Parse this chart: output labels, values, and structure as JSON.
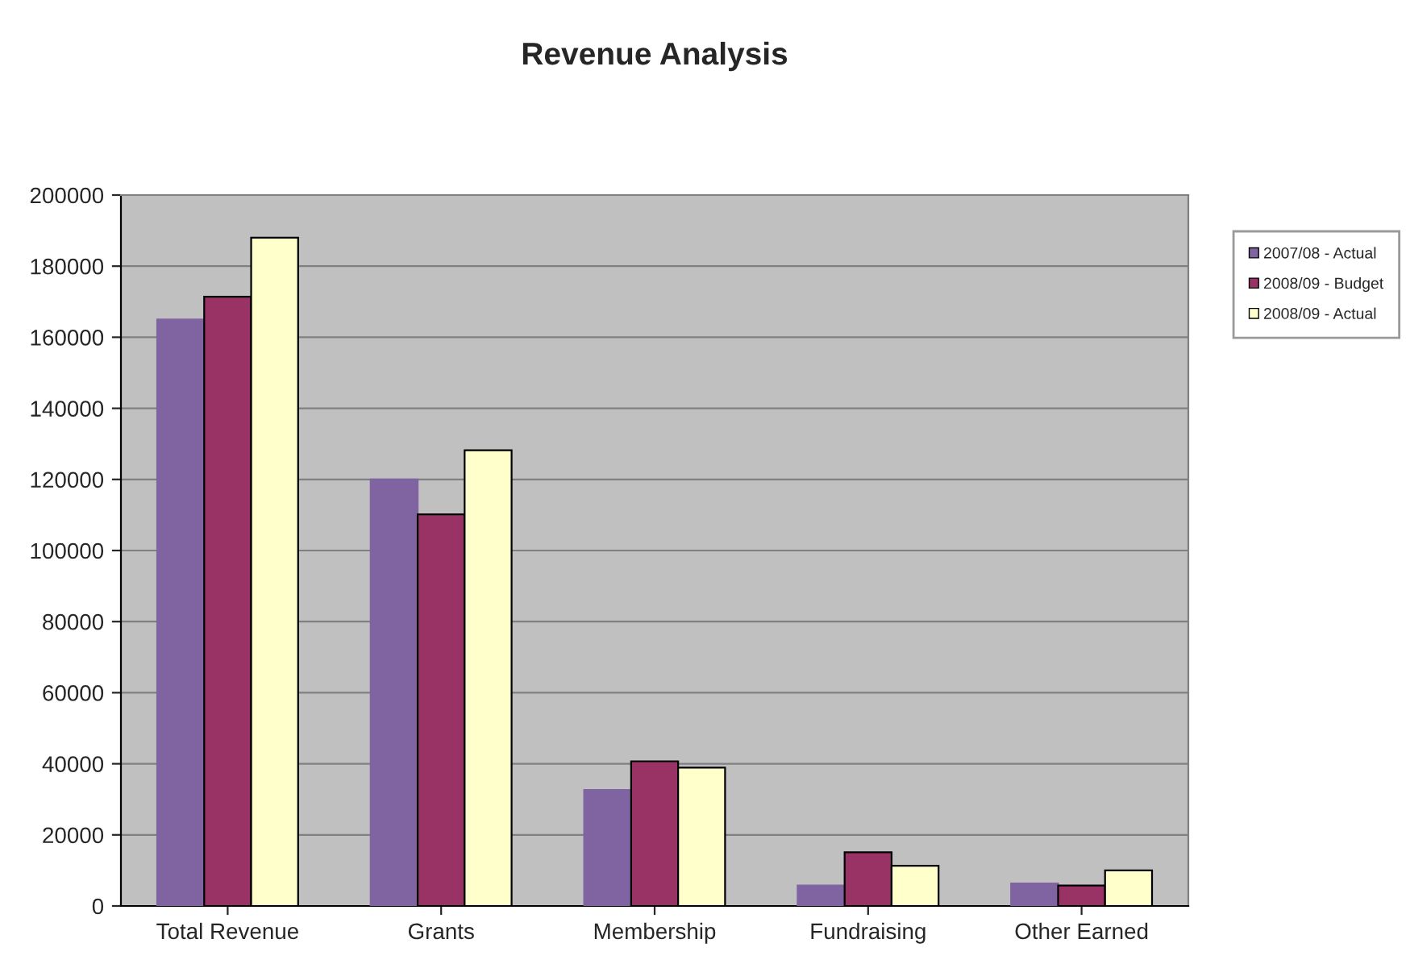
{
  "chart_data": {
    "type": "bar",
    "title": "Revenue Analysis",
    "categories": [
      "Total Revenue",
      "Grants",
      "Membership",
      "Fundraising",
      "Other Earned"
    ],
    "series": [
      {
        "name": "2007/08 - Actual",
        "color": "#8064a2",
        "values": [
          165000,
          120000,
          32650,
          5750,
          6350
        ]
      },
      {
        "name": "2008/09 - Budget",
        "color": "#993366",
        "values": [
          171400,
          110200,
          40700,
          15100,
          5750
        ]
      },
      {
        "name": "2008/09 - Actual",
        "color": "#ffffcc",
        "values": [
          188000,
          128200,
          38900,
          11300,
          10000
        ]
      }
    ],
    "ylim": [
      0,
      200000
    ],
    "yticks": [
      0,
      20000,
      40000,
      60000,
      80000,
      100000,
      120000,
      140000,
      160000,
      180000,
      200000
    ],
    "grid": "y",
    "legend": "top right"
  }
}
